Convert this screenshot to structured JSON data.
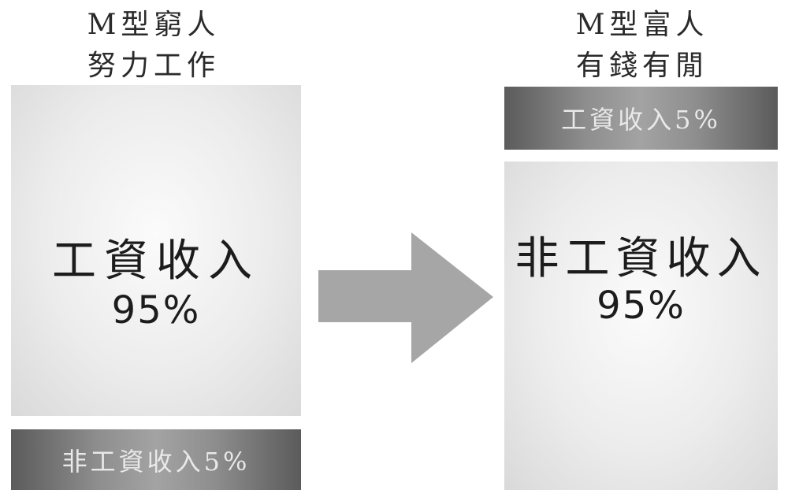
{
  "left": {
    "heading_line1": "M型窮人",
    "heading_line2": "努力工作",
    "main_label": "工資收入",
    "main_percent": "95%",
    "bottom_label": "非工資收入5%"
  },
  "right": {
    "heading_line1": "M型富人",
    "heading_line2": "有錢有閒",
    "top_label": "工資收入5%",
    "main_label": "非工資收入",
    "main_percent": "95%"
  },
  "colors": {
    "light_panel": "#ececec",
    "dark_panel": "#7a7a7a",
    "arrow": "#a6a6a6"
  },
  "icons": {
    "arrow": "right-arrow-icon"
  }
}
